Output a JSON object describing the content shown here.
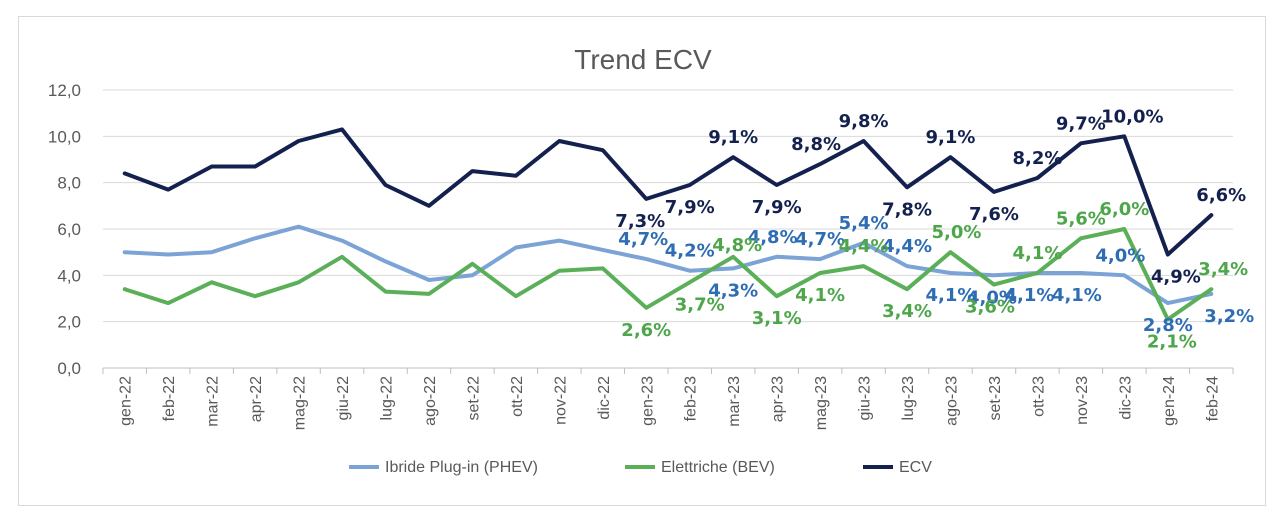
{
  "chart_data": {
    "type": "line",
    "title": "Trend ECV",
    "xlabel": "",
    "ylabel": "",
    "ylim": [
      0,
      12
    ],
    "yticks": [
      "0,0",
      "2,0",
      "4,0",
      "6,0",
      "8,0",
      "10,0",
      "12,0"
    ],
    "grid": true,
    "legend_position": "bottom",
    "categories": [
      "gen-22",
      "feb-22",
      "mar-22",
      "apr-22",
      "mag-22",
      "giu-22",
      "lug-22",
      "ago-22",
      "set-22",
      "ott-22",
      "nov-22",
      "dic-22",
      "gen-23",
      "feb-23",
      "mar-23",
      "apr-23",
      "mag-23",
      "giu-23",
      "lug-23",
      "ago-23",
      "set-23",
      "ott-23",
      "nov-23",
      "dic-23",
      "gen-24",
      "feb-24"
    ],
    "series": [
      {
        "name": "Ibride Plug-in (PHEV)",
        "color": "#7ba3d6",
        "label_color": "#2e6db4",
        "values": [
          5.0,
          4.9,
          5.0,
          5.6,
          6.1,
          5.5,
          4.6,
          3.8,
          4.0,
          5.2,
          5.5,
          5.1,
          4.7,
          4.2,
          4.3,
          4.8,
          4.7,
          5.4,
          4.4,
          4.1,
          4.0,
          4.1,
          4.1,
          4.0,
          2.8,
          3.2
        ],
        "labels": [
          "",
          "",
          "",
          "",
          "",
          "",
          "",
          "",
          "",
          "",
          "",
          "",
          "4,7%",
          "4,2%",
          "4,3%",
          "4,8%",
          "4,7%",
          "5,4%",
          "4,4%",
          "4,1%",
          "4,0%",
          "4,1%",
          "4,1%",
          "4,0%",
          "2,8%",
          "3,2%"
        ]
      },
      {
        "name": "Elettriche (BEV)",
        "color": "#5aaf58",
        "label_color": "#4ea64b",
        "values": [
          3.4,
          2.8,
          3.7,
          3.1,
          3.7,
          4.8,
          3.3,
          3.2,
          4.5,
          3.1,
          4.2,
          4.3,
          2.6,
          3.7,
          4.8,
          3.1,
          4.1,
          4.4,
          3.4,
          5.0,
          3.6,
          4.1,
          5.6,
          6.0,
          2.1,
          3.4
        ],
        "labels": [
          "",
          "",
          "",
          "",
          "",
          "",
          "",
          "",
          "",
          "",
          "",
          "",
          "2,6%",
          "3,7%",
          "4,8%",
          "3,1%",
          "4,1%",
          "4,4%",
          "3,4%",
          "5,0%",
          "3,6%",
          "4,1%",
          "5,6%",
          "6,0%",
          "2,1%",
          "3,4%"
        ]
      },
      {
        "name": "ECV",
        "color": "#14214e",
        "label_color": "#14214e",
        "values": [
          8.4,
          7.7,
          8.7,
          8.7,
          9.8,
          10.3,
          7.9,
          7.0,
          8.5,
          8.3,
          9.8,
          9.4,
          7.3,
          7.9,
          9.1,
          7.9,
          8.8,
          9.8,
          7.8,
          9.1,
          7.6,
          8.2,
          9.7,
          10.0,
          4.9,
          6.6
        ],
        "labels": [
          "",
          "",
          "",
          "",
          "",
          "",
          "",
          "",
          "",
          "",
          "",
          "",
          "7,3%",
          "7,9%",
          "9,1%",
          "7,9%",
          "8,8%",
          "9,8%",
          "7,8%",
          "9,1%",
          "7,6%",
          "8,2%",
          "9,7%",
          "10,0%",
          "4,9%",
          "6,6%"
        ]
      }
    ]
  }
}
